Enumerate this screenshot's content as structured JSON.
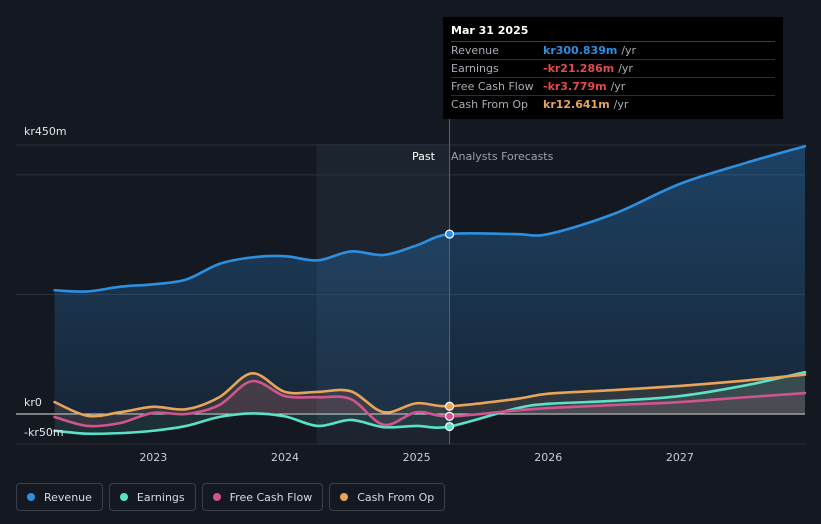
{
  "chart_data": {
    "type": "line",
    "currency": "kr",
    "ylim": [
      -50,
      450
    ],
    "ylabels": {
      "top": "kr450m",
      "zero": "kr0",
      "bottom": "-kr50m"
    },
    "x_ticks": [
      "2023",
      "2024",
      "2025",
      "2026",
      "2027"
    ],
    "x_tick_values": [
      2023.0,
      2024.0,
      2025.0,
      2026.0,
      2027.0
    ],
    "xlim": [
      2022.2,
      2027.95
    ],
    "past_start": 2024.24,
    "past_end": 2025.25,
    "region_labels": {
      "past": "Past",
      "forecast": "Analysts Forecasts"
    },
    "series": [
      {
        "name": "Revenue",
        "color": "#2d8fe0",
        "fill": true,
        "points": [
          [
            2022.25,
            207
          ],
          [
            2022.5,
            205
          ],
          [
            2022.75,
            213
          ],
          [
            2023.0,
            217
          ],
          [
            2023.25,
            225
          ],
          [
            2023.5,
            251
          ],
          [
            2023.75,
            262
          ],
          [
            2024.0,
            264
          ],
          [
            2024.25,
            257
          ],
          [
            2024.5,
            272
          ],
          [
            2024.75,
            266
          ],
          [
            2025.0,
            282
          ],
          [
            2025.25,
            301
          ],
          [
            2025.75,
            301
          ],
          [
            2026.0,
            301
          ],
          [
            2026.5,
            335
          ],
          [
            2027.0,
            385
          ],
          [
            2027.5,
            420
          ],
          [
            2027.95,
            448
          ]
        ]
      },
      {
        "name": "Earnings",
        "color": "#5ce0c8",
        "fill": false,
        "points": [
          [
            2022.25,
            -28
          ],
          [
            2022.5,
            -33
          ],
          [
            2022.75,
            -32
          ],
          [
            2023.0,
            -28
          ],
          [
            2023.25,
            -20
          ],
          [
            2023.5,
            -5
          ],
          [
            2023.75,
            1
          ],
          [
            2024.0,
            -4
          ],
          [
            2024.25,
            -20
          ],
          [
            2024.5,
            -10
          ],
          [
            2024.75,
            -22
          ],
          [
            2025.0,
            -20
          ],
          [
            2025.25,
            -21
          ],
          [
            2025.75,
            9
          ],
          [
            2026.0,
            17
          ],
          [
            2026.5,
            22
          ],
          [
            2027.0,
            30
          ],
          [
            2027.5,
            48
          ],
          [
            2027.95,
            70
          ]
        ]
      },
      {
        "name": "Free Cash Flow",
        "color": "#d0558f",
        "fill": false,
        "points": [
          [
            2022.25,
            -5
          ],
          [
            2022.5,
            -20
          ],
          [
            2022.75,
            -15
          ],
          [
            2023.0,
            2
          ],
          [
            2023.25,
            0
          ],
          [
            2023.5,
            15
          ],
          [
            2023.75,
            55
          ],
          [
            2024.0,
            30
          ],
          [
            2024.25,
            28
          ],
          [
            2024.5,
            25
          ],
          [
            2024.75,
            -18
          ],
          [
            2025.0,
            3
          ],
          [
            2025.25,
            -4
          ],
          [
            2025.75,
            6
          ],
          [
            2026.0,
            10
          ],
          [
            2026.5,
            15
          ],
          [
            2027.0,
            20
          ],
          [
            2027.5,
            28
          ],
          [
            2027.95,
            35
          ]
        ]
      },
      {
        "name": "Cash From Op",
        "color": "#e8a55a",
        "fill": false,
        "points": [
          [
            2022.25,
            20
          ],
          [
            2022.5,
            -3
          ],
          [
            2022.75,
            3
          ],
          [
            2023.0,
            12
          ],
          [
            2023.25,
            8
          ],
          [
            2023.5,
            28
          ],
          [
            2023.75,
            68
          ],
          [
            2024.0,
            37
          ],
          [
            2024.25,
            37
          ],
          [
            2024.5,
            38
          ],
          [
            2024.75,
            3
          ],
          [
            2025.0,
            18
          ],
          [
            2025.25,
            13
          ],
          [
            2025.75,
            25
          ],
          [
            2026.0,
            34
          ],
          [
            2026.5,
            40
          ],
          [
            2027.0,
            47
          ],
          [
            2027.5,
            56
          ],
          [
            2027.95,
            66
          ]
        ]
      }
    ]
  },
  "tooltip": {
    "date": "Mar 31 2025",
    "rows": [
      {
        "label": "Revenue",
        "value": "kr300.839m",
        "unit": "/yr",
        "color": "#2d8fe0"
      },
      {
        "label": "Earnings",
        "value": "-kr21.286m",
        "unit": "/yr",
        "color": "#e24b4b"
      },
      {
        "label": "Free Cash Flow",
        "value": "-kr3.779m",
        "unit": "/yr",
        "color": "#e24b4b"
      },
      {
        "label": "Cash From Op",
        "value": "kr12.641m",
        "unit": "/yr",
        "color": "#e8a55a"
      }
    ]
  },
  "legend": [
    {
      "label": "Revenue",
      "color": "#2d8fe0"
    },
    {
      "label": "Earnings",
      "color": "#5ce0c8"
    },
    {
      "label": "Free Cash Flow",
      "color": "#d0558f"
    },
    {
      "label": "Cash From Op",
      "color": "#e8a55a"
    }
  ]
}
